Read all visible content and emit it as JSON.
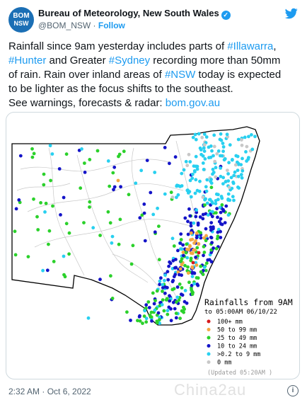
{
  "account": {
    "avatar_line1": "BOM",
    "avatar_line2": "NSW",
    "display_name": "Bureau of Meteorology, New South Wales",
    "handle": "@BOM_NSW",
    "separator": " · ",
    "follow_label": "Follow",
    "verified_icon": "verified-badge-icon",
    "brand_icon": "twitter-bird-icon"
  },
  "tweet": {
    "l1a": "Rainfall since 9am yesterday includes parts of ",
    "tag1": "#Illawarra",
    "l1b": ",",
    "tag2": "#Hunter",
    "l2a": " and Greater ",
    "tag3": "#Sydney",
    "l2b": " recording more than 50mm",
    "l3a": "of rain. Rain over inland areas of ",
    "tag4": "#NSW",
    "l3b": " today is expected",
    "l4": "to be lighter as the focus shifts to the southeast.",
    "l5a": "See warnings, forecasts & radar: ",
    "link": "bom.gov.au"
  },
  "map": {
    "legend_title": "Rainfalls from 9AM",
    "legend_subtitle": "to 05:00AM 06/10/22",
    "legend_items": [
      {
        "label": "100+ mm",
        "color": "#d7191c"
      },
      {
        "label": "50 to 99 mm",
        "color": "#f4a742"
      },
      {
        "label": "25 to 49 mm",
        "color": "#2bd12b"
      },
      {
        "label": "10 to 24 mm",
        "color": "#1414c8"
      },
      {
        "label": ">0.2 to 9 mm",
        "color": "#28d0f0"
      },
      {
        "label": "0 mm",
        "color": "#c8c8c8"
      }
    ],
    "updated": "(Updated 05:20AM )"
  },
  "footer": {
    "timestamp": "2:32 AM · Oct 6, 2022",
    "info_icon": "info-icon",
    "watermark": "Chinа2au"
  }
}
